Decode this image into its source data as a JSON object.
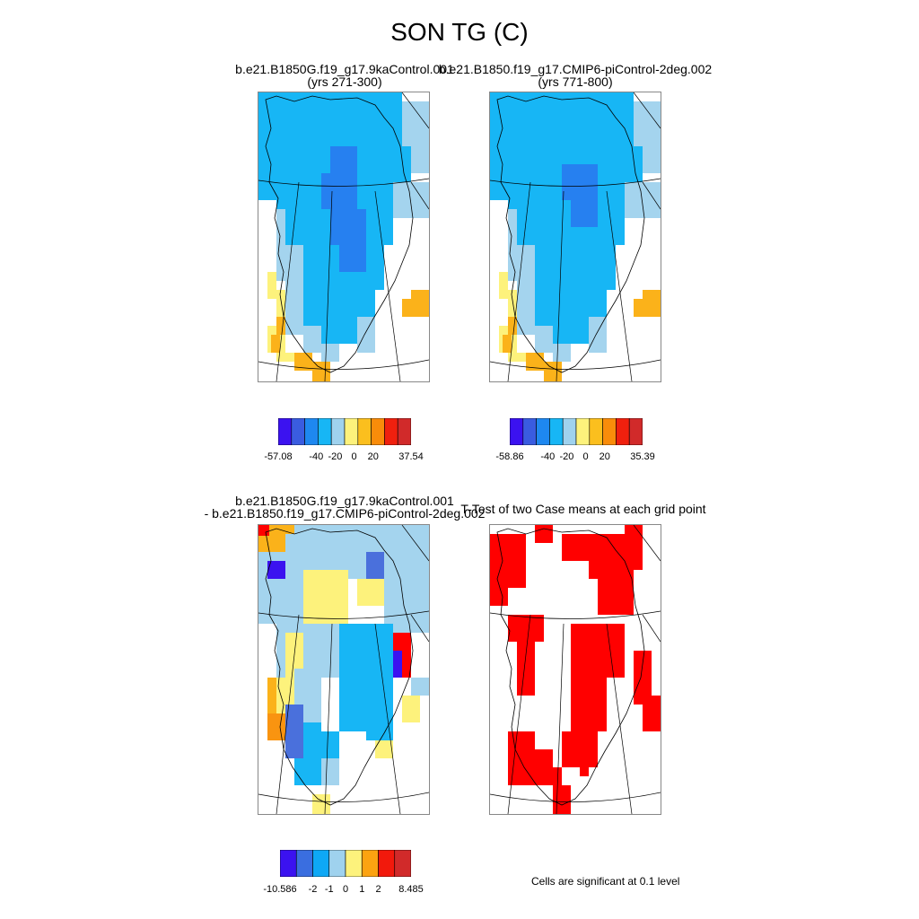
{
  "title": "SON TG (C)",
  "panels": {
    "p1": {
      "title1": "b.e21.B1850G.f19_g17.9kaControl.001",
      "title2": "(yrs 271-300)"
    },
    "p2": {
      "title1": "b.e21.B1850.f19_g17.CMIP6-piControl-2deg.002",
      "title2": "(yrs 771-800)"
    },
    "p3": {
      "title1": "b.e21.B1850G.f19_g17.9kaControl.001",
      "title2": "- b.e21.B1850.f19_g17.CMIP6-piControl-2deg.002"
    },
    "p4": {
      "title1": "T-Test of two Case means at each grid point"
    }
  },
  "colorbars": {
    "cb1": {
      "labels": [
        "-57.08",
        "-40",
        "-20",
        "0",
        "20",
        "37.54"
      ],
      "colors": [
        "#3b12f0",
        "#3a5ce0",
        "#1e88f0",
        "#17b6f5",
        "#9fd2ee",
        "#fdf27c",
        "#fbbf1e",
        "#f98c0a",
        "#f0200e",
        "#d12a2a"
      ]
    },
    "cb2": {
      "labels": [
        "-58.86",
        "-40",
        "-20",
        "0",
        "20",
        "35.39"
      ],
      "colors": [
        "#3b12f0",
        "#3a5ce0",
        "#1e88f0",
        "#17b6f5",
        "#9fd2ee",
        "#fdf27c",
        "#fbbf1e",
        "#f98c0a",
        "#f0200e",
        "#d12a2a"
      ]
    },
    "cb3": {
      "labels": [
        "-10.586",
        "-2",
        "-1",
        "0",
        "1",
        "2",
        "8.485"
      ],
      "colors": [
        "#3b12f0",
        "#3a6ee0",
        "#0ea8f5",
        "#9fd2ee",
        "#fdf27c",
        "#fca311",
        "#f2190c",
        "#d12a2a"
      ]
    }
  },
  "note": "Cells are significant at 0.1 level",
  "map_colors": {
    "deep_blue": "#2680f0",
    "light_blue": "#17b6f5",
    "pale_blue": "#a4d4ee",
    "yellow": "#fdf27c",
    "orange": "#fbb21a",
    "dark_orange": "#f99410",
    "purple": "#3b12f0",
    "mid_blue": "#4a70dc",
    "red": "#ff0000"
  }
}
